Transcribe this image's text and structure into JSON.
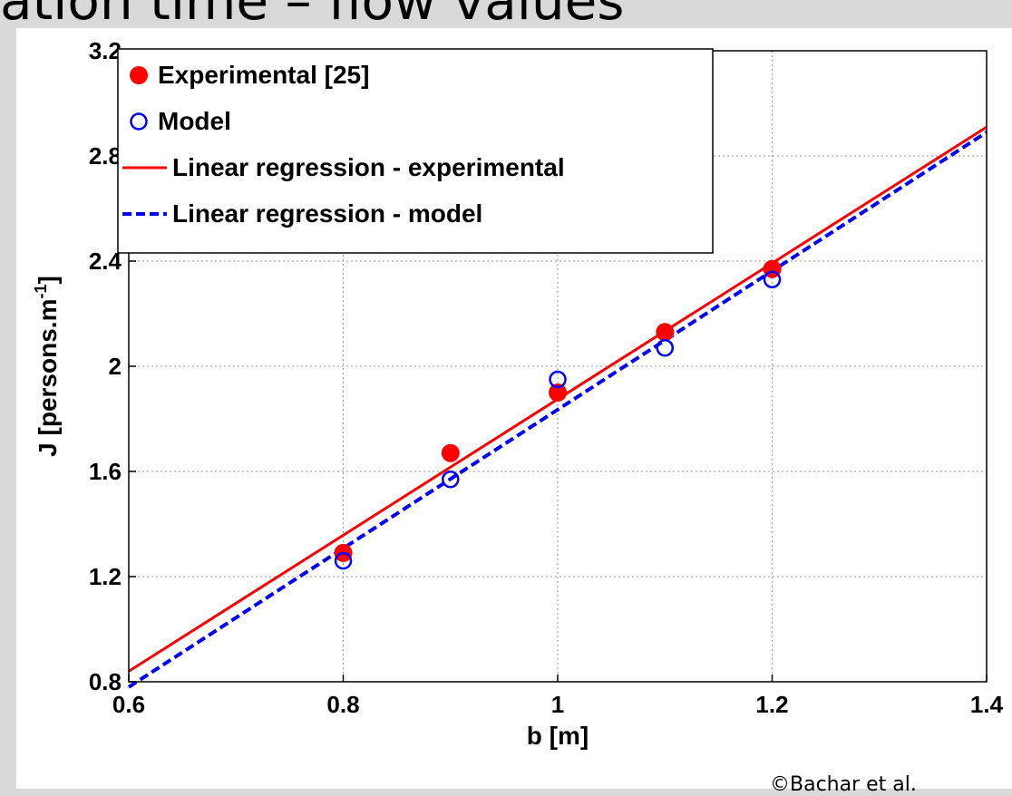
{
  "slide": {
    "title": "ation time – flow values",
    "copyright": "©Bachar et al."
  },
  "chart_data": {
    "type": "scatter",
    "xlabel": "b [m]",
    "ylabel": "J [persons.m",
    "ylabel_superscript": "-1",
    "ylabel_suffix": "]",
    "xlim": [
      0.6,
      1.4
    ],
    "ylim": [
      0.8,
      3.2
    ],
    "xticks": [
      "0.6",
      "0.8",
      "1",
      "1.2",
      "1.4"
    ],
    "yticks": [
      "0.8",
      "1.2",
      "1.6",
      "2",
      "2.4",
      "2.8",
      "3.2"
    ],
    "grid": true,
    "legend_position": "top-left",
    "series": [
      {
        "name": "Experimental [25]",
        "marker": "filled-circle",
        "color": "#ff0000",
        "x": [
          0.8,
          0.9,
          1.0,
          1.1,
          1.2
        ],
        "y": [
          1.29,
          1.67,
          1.9,
          2.13,
          2.37
        ]
      },
      {
        "name": "Model",
        "marker": "open-circle",
        "color": "#0000ff",
        "x": [
          0.8,
          0.9,
          1.0,
          1.1,
          1.2
        ],
        "y": [
          1.26,
          1.57,
          1.95,
          2.07,
          2.33
        ]
      },
      {
        "name": "Linear regression - experimental",
        "marker": "solid-line",
        "color": "#ff0000",
        "x": [
          0.6,
          1.4
        ],
        "y": [
          0.84,
          2.91
        ]
      },
      {
        "name": "Linear regression - model",
        "marker": "dashed-line",
        "color": "#0000ff",
        "x": [
          0.6,
          1.4
        ],
        "y": [
          0.78,
          2.89
        ]
      }
    ]
  }
}
